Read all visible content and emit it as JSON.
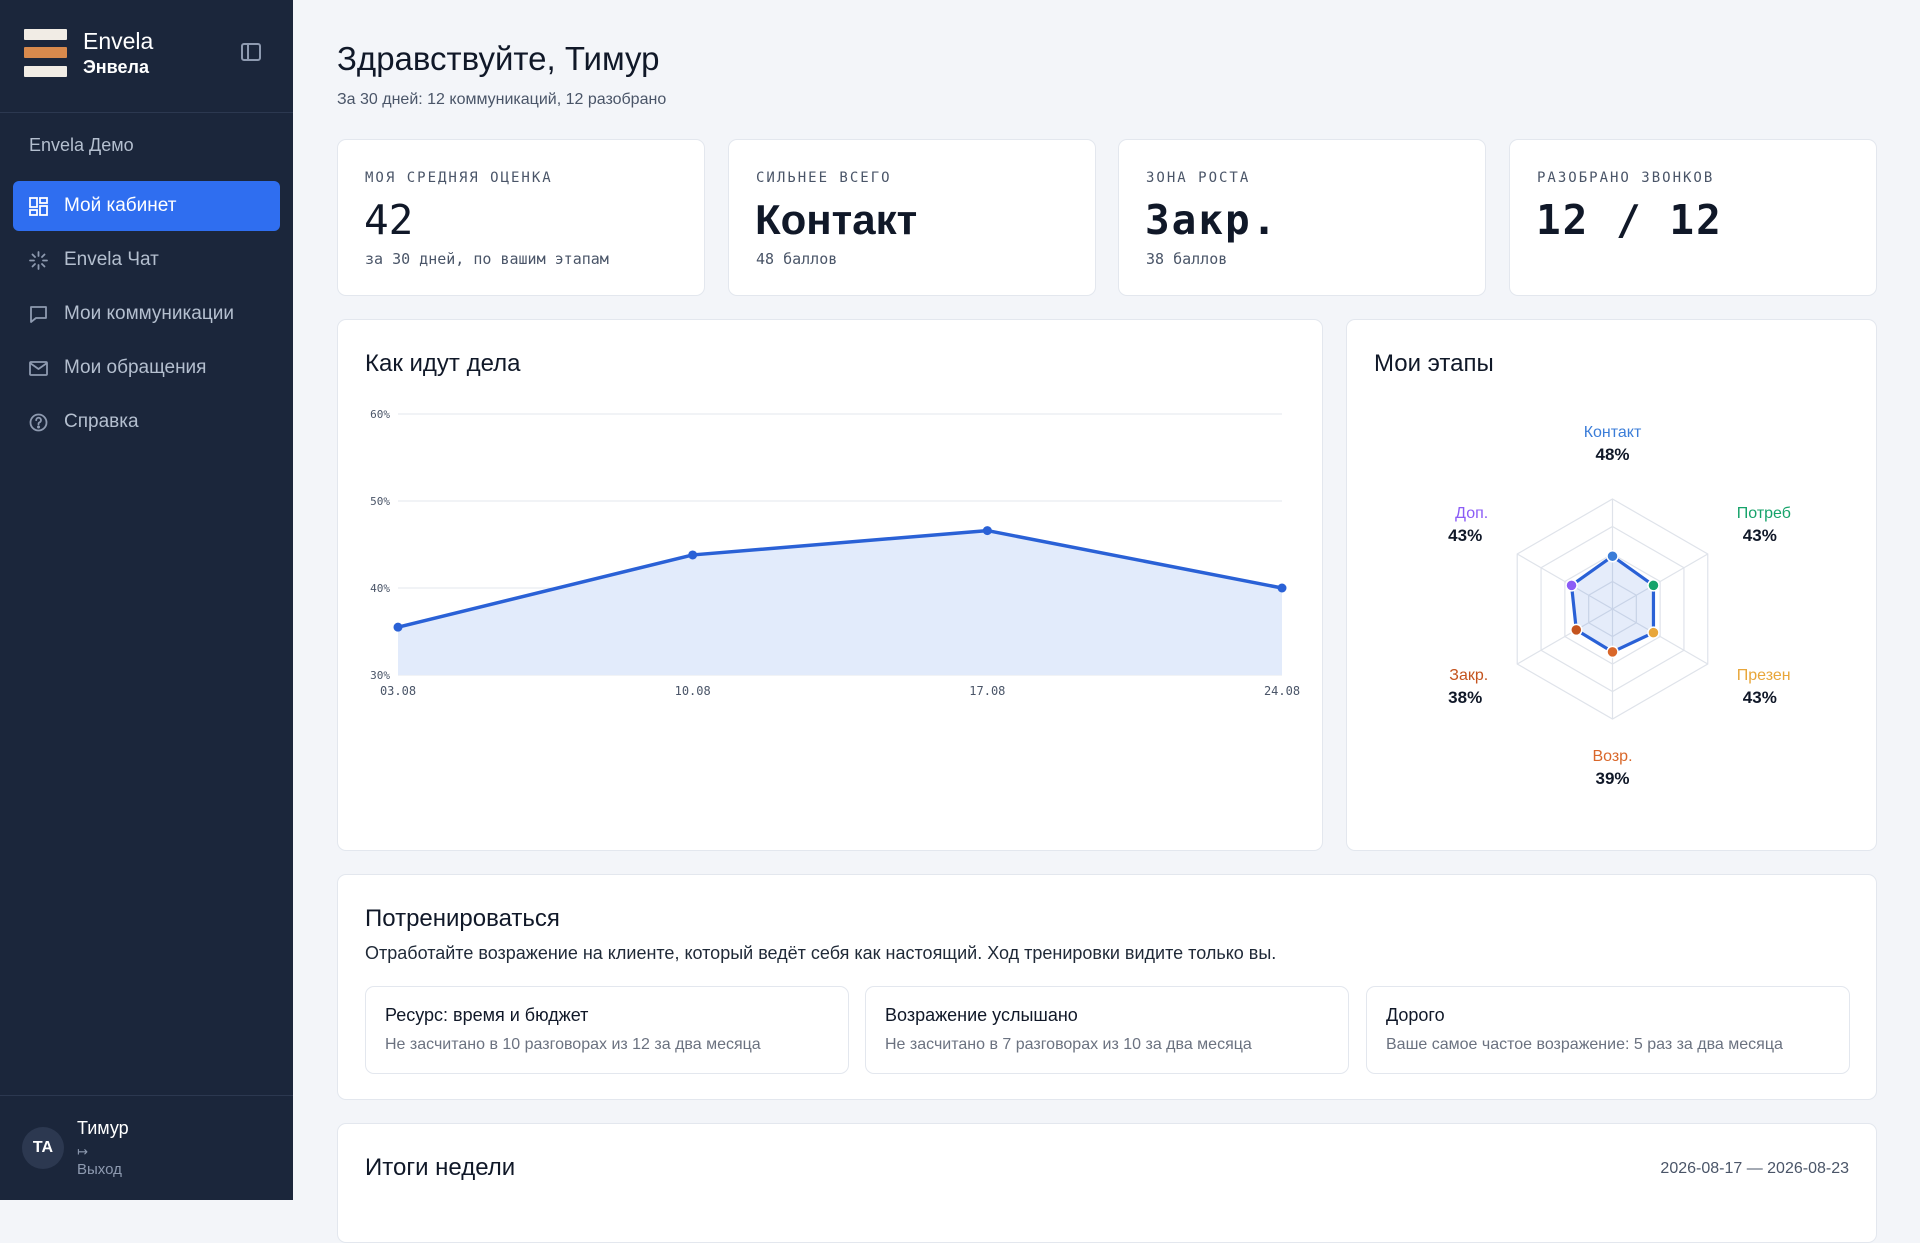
{
  "brand": {
    "name": "Envela",
    "name_ru": "Энвела"
  },
  "sidebar": {
    "workspace": "Envela Демо",
    "items": [
      {
        "label": "Мой кабинет",
        "icon": "dashboard-icon",
        "active": true
      },
      {
        "label": "Envela Чат",
        "icon": "sparkle-loader-icon",
        "active": false
      },
      {
        "label": "Мои коммуникации",
        "icon": "chat-bubble-icon",
        "active": false
      },
      {
        "label": "Мои обращения",
        "icon": "mail-icon",
        "active": false
      },
      {
        "label": "Справка",
        "icon": "help-circle-icon",
        "active": false
      }
    ],
    "user": {
      "initials": "TA",
      "name": "Тимур",
      "logout": "Выход"
    }
  },
  "header": {
    "greeting": "Здравствуйте, Тимур",
    "subtitle": "За 30 дней: 12 коммуникаций, 12 разобрано"
  },
  "stats": [
    {
      "label": "МОЯ СРЕДНЯЯ ОЦЕНКА",
      "value": "42",
      "note": "за 30 дней, по вашим этапам"
    },
    {
      "label": "СИЛЬНЕЕ ВСЕГО",
      "value": "Контакт",
      "note": "48 баллов"
    },
    {
      "label": "ЗОНА РОСТА",
      "value": "Закр.",
      "note": "38 баллов"
    },
    {
      "label": "РАЗОБРАНО ЗВОНКОВ",
      "value": "12 / 12",
      "note": ""
    }
  ],
  "progress": {
    "title": "Как идут дела",
    "chart_data": {
      "type": "area",
      "x": [
        "03.08",
        "10.08",
        "17.08",
        "24.08"
      ],
      "values": [
        35.5,
        43.8,
        46.6,
        40.0
      ],
      "ylim": [
        30,
        60
      ],
      "yticks": [
        "30%",
        "40%",
        "50%",
        "60%"
      ],
      "grid": true,
      "color": "#2a61d6",
      "fill": "#e2ebfb"
    }
  },
  "stages": {
    "title": "Мои этапы",
    "chart_data": {
      "type": "radar",
      "categories": [
        "Контакт",
        "Потреб",
        "Презен",
        "Возр.",
        "Закр.",
        "Доп."
      ],
      "values": [
        48,
        43,
        43,
        39,
        38,
        43
      ],
      "value_labels": [
        "48%",
        "43%",
        "43%",
        "39%",
        "38%",
        "43%"
      ],
      "colors": [
        "#3b7dd8",
        "#16a36a",
        "#e8a63a",
        "#d9672a",
        "#c4541f",
        "#8b5cf6"
      ],
      "line_color": "#2a61d6"
    }
  },
  "training": {
    "title": "Потренироваться",
    "subtitle": "Отработайте возражение на клиенте, который ведёт себя как настоящий. Ход тренировки видите только вы.",
    "cards": [
      {
        "title": "Ресурс: время и бюджет",
        "desc": "Не засчитано в 10 разговорах из 12 за два месяца"
      },
      {
        "title": "Возражение услышано",
        "desc": "Не засчитано в 7 разговорах из 10 за два месяца"
      },
      {
        "title": "Дорого",
        "desc": "Ваше самое частое возражение: 5 раз за два месяца"
      }
    ]
  },
  "week": {
    "title": "Итоги недели",
    "range": "2026-08-17 — 2026-08-23"
  }
}
